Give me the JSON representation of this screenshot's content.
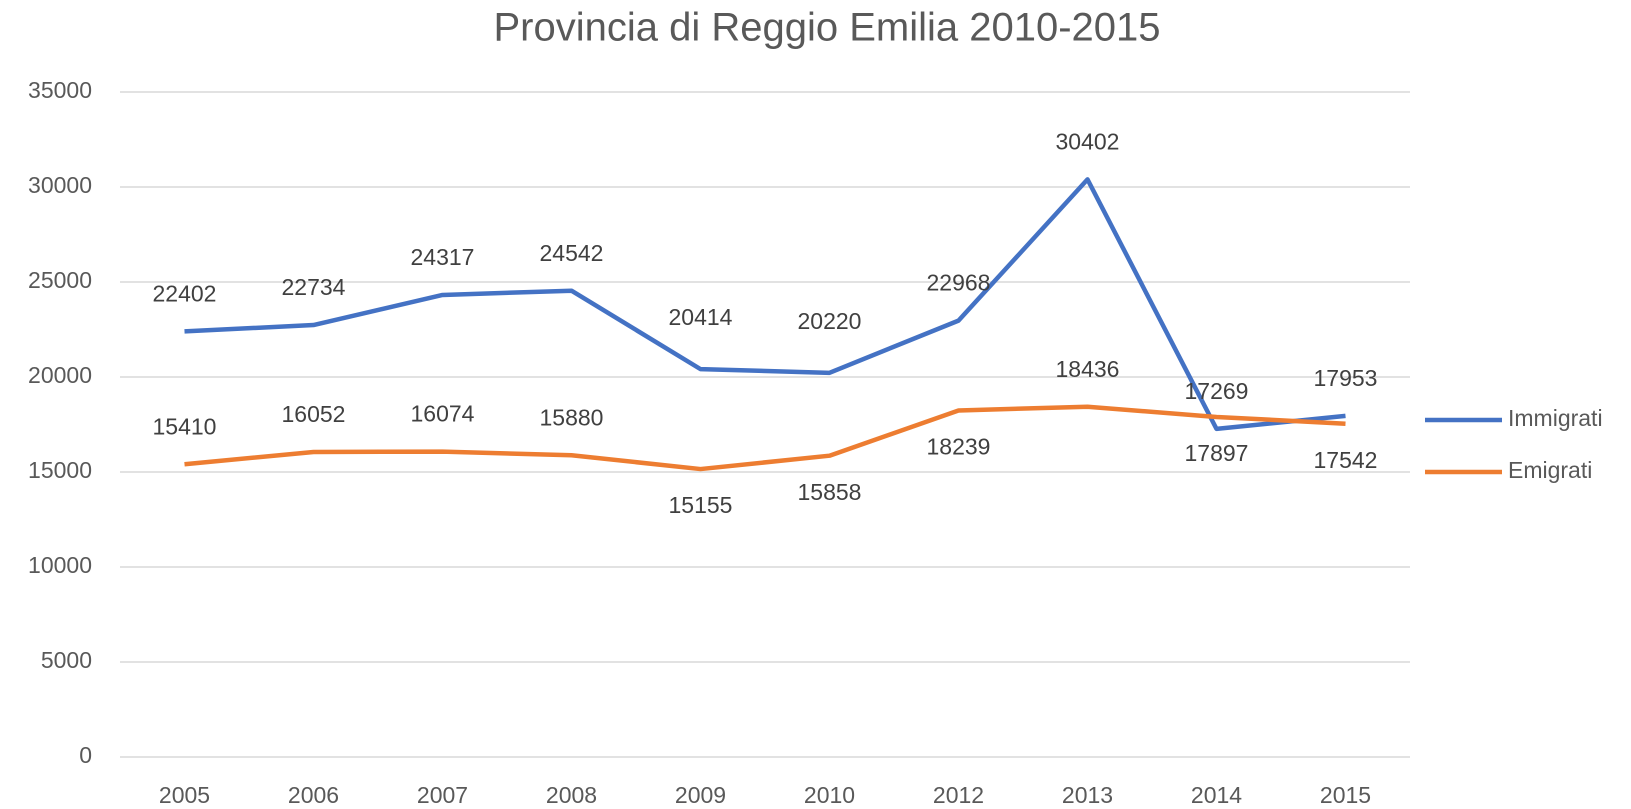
{
  "chart_data": {
    "type": "line",
    "title": "Provincia di Reggio Emilia  2010-2015",
    "categories": [
      "2005",
      "2006",
      "2007",
      "2008",
      "2009",
      "2010",
      "2012",
      "2013",
      "2014",
      "2015"
    ],
    "series": [
      {
        "name": "Immigrati",
        "color": "#4472c4",
        "values": [
          22402,
          22734,
          24317,
          24542,
          20414,
          20220,
          22968,
          30402,
          17269,
          17953
        ]
      },
      {
        "name": "Emigrati",
        "color": "#ed7d31",
        "values": [
          15410,
          16052,
          16074,
          15880,
          15155,
          15858,
          18239,
          18436,
          17897,
          17542
        ]
      }
    ],
    "ylim": [
      0,
      35000
    ],
    "yticks": [
      0,
      5000,
      10000,
      15000,
      20000,
      25000,
      30000,
      35000
    ],
    "grid": true,
    "legend": "right"
  }
}
